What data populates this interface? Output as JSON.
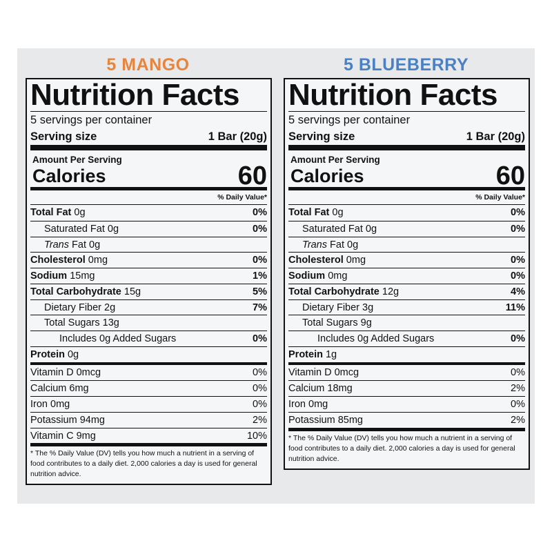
{
  "panels": [
    {
      "heading": "5 MANGO",
      "heading_color": "#e8843c",
      "title": "Nutrition Facts",
      "servings": "5 servings per container",
      "serving_size_label": "Serving size",
      "serving_size": "1 Bar (20g)",
      "amount_per_serving": "Amount Per Serving",
      "calories_label": "Calories",
      "calories": "60",
      "dv_header": "% Daily Value*",
      "nutrients": [
        {
          "name": "Total Fat",
          "amount": "0g",
          "dv": "0%"
        },
        {
          "name": "Saturated Fat",
          "amount": "0g",
          "dv": "0%"
        },
        {
          "name_italic": "Trans",
          "name": "Fat",
          "amount": "0g"
        },
        {
          "name": "Cholesterol",
          "amount": "0mg",
          "dv": "0%"
        },
        {
          "name": "Sodium",
          "amount": "15mg",
          "dv": "1%"
        },
        {
          "name": "Total Carbohydrate",
          "amount": "15g",
          "dv": "5%"
        },
        {
          "name": "Dietary Fiber",
          "amount": "2g",
          "dv": "7%"
        },
        {
          "name": "Total Sugars",
          "amount": "13g"
        },
        {
          "name": "Includes 0g Added Sugars",
          "dv": "0%"
        },
        {
          "name": "Protein",
          "amount": "0g"
        }
      ],
      "vitamins": [
        {
          "name": "Vitamin D 0mcg",
          "dv": "0%"
        },
        {
          "name": "Calcium 6mg",
          "dv": "0%"
        },
        {
          "name": "Iron 0mg",
          "dv": "0%"
        },
        {
          "name": "Potassium 94mg",
          "dv": "2%"
        },
        {
          "name": "Vitamin C 9mg",
          "dv": "10%"
        }
      ],
      "footnote": "* The % Daily Value (DV) tells you how much a nutrient in a serving of food contributes to a daily diet. 2,000 calories a day is used for general nutrition advice."
    },
    {
      "heading": "5 BLUEBERRY",
      "heading_color": "#4a80c4",
      "title": "Nutrition Facts",
      "servings": "5 servings per container",
      "serving_size_label": "Serving size",
      "serving_size": "1 Bar (20g)",
      "amount_per_serving": "Amount Per Serving",
      "calories_label": "Calories",
      "calories": "60",
      "dv_header": "% Daily Value*",
      "nutrients": [
        {
          "name": "Total Fat",
          "amount": "0g",
          "dv": "0%"
        },
        {
          "name": "Saturated Fat",
          "amount": "0g",
          "dv": "0%"
        },
        {
          "name_italic": "Trans",
          "name": "Fat",
          "amount": "0g"
        },
        {
          "name": "Cholesterol",
          "amount": "0mg",
          "dv": "0%"
        },
        {
          "name": "Sodium",
          "amount": "0mg",
          "dv": "0%"
        },
        {
          "name": "Total Carbohydrate",
          "amount": "12g",
          "dv": "4%"
        },
        {
          "name": "Dietary Fiber",
          "amount": "3g",
          "dv": "11%"
        },
        {
          "name": "Total Sugars",
          "amount": "9g"
        },
        {
          "name": "Includes 0g Added Sugars",
          "dv": "0%"
        },
        {
          "name": "Protein",
          "amount": "1g"
        }
      ],
      "vitamins": [
        {
          "name": "Vitamin D 0mcg",
          "dv": "0%"
        },
        {
          "name": "Calcium 18mg",
          "dv": "2%"
        },
        {
          "name": "Iron 0mg",
          "dv": "0%"
        },
        {
          "name": "Potassium 85mg",
          "dv": "2%"
        }
      ],
      "footnote": "* The % Daily Value (DV) tells you how much a nutrient in a serving of food contributes to a daily diet. 2,000 calories a day is used for general nutrition advice."
    }
  ]
}
